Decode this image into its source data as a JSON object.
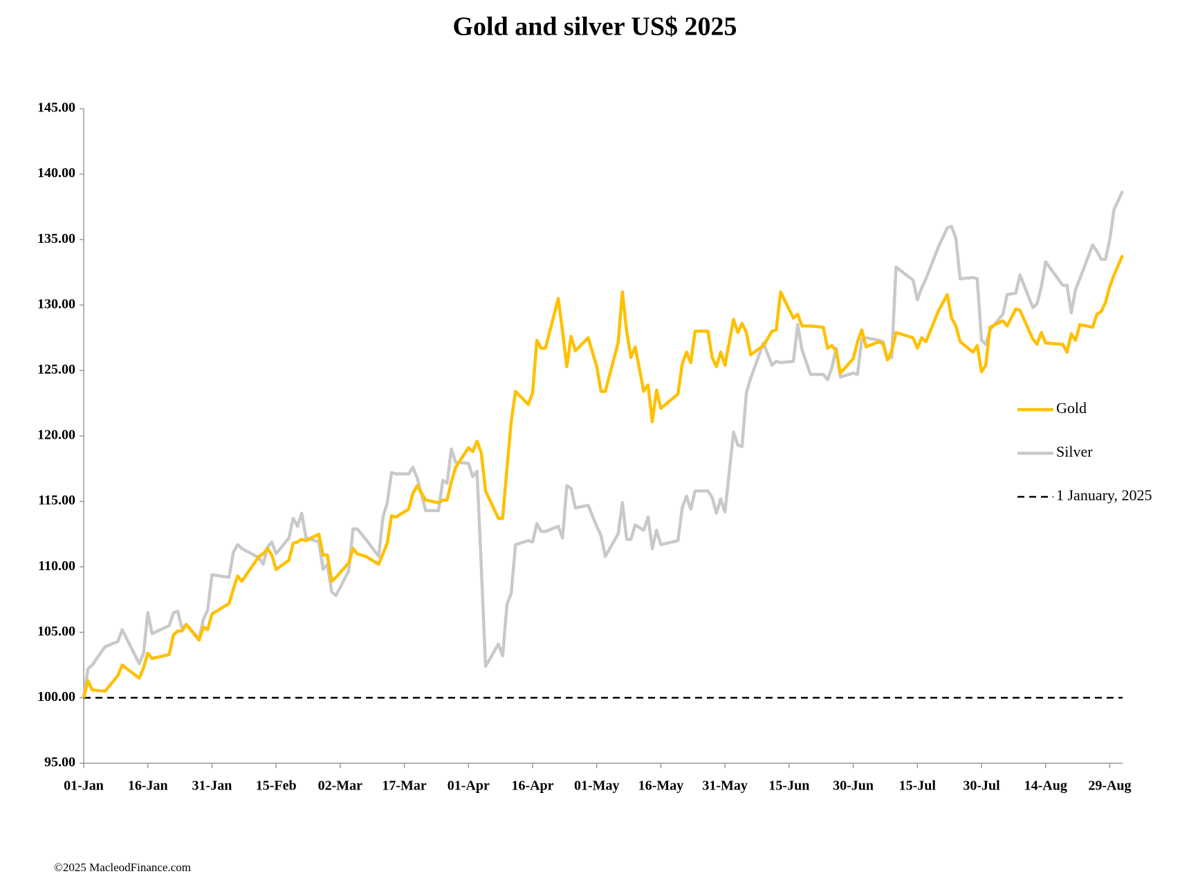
{
  "chart_data": {
    "type": "line",
    "title": "Gold and silver  US$ 2025",
    "source": "©2025 MacleodFinance.com",
    "x": [
      "01-Jan",
      "02-Jan",
      "03-Jan",
      "06-Jan",
      "09-Jan",
      "10-Jan",
      "14-Jan",
      "15-Jan",
      "16-Jan",
      "17-Jan",
      "21-Jan",
      "22-Jan",
      "23-Jan",
      "24-Jan",
      "25-Jan",
      "28-Jan",
      "29-Jan",
      "30-Jan",
      "31-Jan",
      "04-Feb",
      "05-Feb",
      "06-Feb",
      "07-Feb",
      "11-Feb",
      "12-Feb",
      "13-Feb",
      "14-Feb",
      "15-Feb",
      "18-Feb",
      "19-Feb",
      "20-Feb",
      "21-Feb",
      "22-Feb",
      "25-Feb",
      "26-Feb",
      "27-Feb",
      "28-Feb",
      "01-Mar",
      "04-Mar",
      "05-Mar",
      "06-Mar",
      "08-Mar",
      "11-Mar",
      "12-Mar",
      "13-Mar",
      "14-Mar",
      "15-Mar",
      "18-Mar",
      "19-Mar",
      "20-Mar",
      "22-Mar",
      "25-Mar",
      "26-Mar",
      "27-Mar",
      "28-Mar",
      "29-Mar",
      "01-Apr",
      "02-Apr",
      "03-Apr",
      "04-Apr",
      "05-Apr",
      "08-Apr",
      "09-Apr",
      "10-Apr",
      "11-Apr",
      "12-Apr",
      "15-Apr",
      "16-Apr",
      "17-Apr",
      "18-Apr",
      "19-Apr",
      "22-Apr",
      "23-Apr",
      "24-Apr",
      "25-Apr",
      "26-Apr",
      "29-Apr",
      "01-May",
      "02-May",
      "03-May",
      "06-May",
      "07-May",
      "08-May",
      "09-May",
      "10-May",
      "12-May",
      "13-May",
      "14-May",
      "15-May",
      "16-May",
      "20-May",
      "21-May",
      "22-May",
      "23-May",
      "24-May",
      "27-May",
      "28-May",
      "29-May",
      "30-May",
      "31-May",
      "02-Jun",
      "03-Jun",
      "04-Jun",
      "05-Jun",
      "06-Jun",
      "09-Jun",
      "11-Jun",
      "12-Jun",
      "13-Jun",
      "16-Jun",
      "17-Jun",
      "18-Jun",
      "20-Jun",
      "23-Jun",
      "24-Jun",
      "25-Jun",
      "26-Jun",
      "27-Jun",
      "30-Jun",
      "01-Jul",
      "02-Jul",
      "03-Jul",
      "06-Jul",
      "07-Jul",
      "08-Jul",
      "09-Jul",
      "10-Jul",
      "14-Jul",
      "15-Jul",
      "16-Jul",
      "17-Jul",
      "20-Jul",
      "22-Jul",
      "23-Jul",
      "24-Jul",
      "25-Jul",
      "28-Jul",
      "29-Jul",
      "30-Jul",
      "31-Jul",
      "01-Aug",
      "04-Aug",
      "05-Aug",
      "07-Aug",
      "08-Aug",
      "11-Aug",
      "12-Aug",
      "13-Aug",
      "14-Aug",
      "18-Aug",
      "19-Aug",
      "20-Aug",
      "21-Aug",
      "22-Aug",
      "25-Aug",
      "26-Aug",
      "27-Aug",
      "28-Aug",
      "29-Aug",
      "30-Aug",
      "01-Sep"
    ],
    "series": [
      {
        "name": "Gold",
        "color": "#ffc000",
        "values": [
          100,
          101.3,
          100.6,
          100.5,
          101.7,
          102.5,
          101.5,
          102.3,
          103.4,
          103,
          103.3,
          104.8,
          105.1,
          105.1,
          105.6,
          104.4,
          105.4,
          105.2,
          106.4,
          107.2,
          108.3,
          109.3,
          108.9,
          110.8,
          111,
          111.4,
          110.9,
          109.8,
          110.5,
          111.8,
          111.9,
          112.1,
          112,
          112.5,
          110.9,
          110.9,
          108.9,
          109.2,
          110.3,
          111.4,
          111,
          110.8,
          110.2,
          111,
          111.8,
          113.9,
          113.8,
          114.4,
          115.6,
          116.2,
          115.1,
          114.9,
          115.1,
          115.1,
          116.5,
          117.6,
          119.1,
          118.8,
          119.6,
          118.7,
          115.8,
          113.7,
          113.7,
          117.5,
          121.1,
          123.4,
          122.4,
          123.3,
          127.3,
          126.7,
          126.7,
          130.5,
          128,
          125.3,
          127.6,
          126.5,
          127.5,
          125.3,
          123.4,
          123.4,
          127.1,
          131,
          128,
          126,
          126.8,
          123.4,
          123.9,
          121.1,
          123.5,
          122.1,
          123.2,
          125.5,
          126.4,
          125.6,
          128,
          128,
          126,
          125.3,
          126.4,
          125.4,
          128.9,
          127.9,
          128.6,
          127.9,
          126.2,
          126.9,
          128,
          128.1,
          131,
          129,
          129.3,
          128.4,
          128.4,
          128.3,
          126.7,
          126.9,
          126.5,
          124.8,
          125.9,
          127.2,
          128.1,
          126.8,
          127.2,
          127,
          125.8,
          126.5,
          127.9,
          127.5,
          126.7,
          127.5,
          127.2,
          129.6,
          130.8,
          129,
          128.4,
          127.2,
          126.4,
          126.9,
          124.9,
          125.4,
          128.3,
          128.8,
          128.4,
          129.7,
          129.6,
          127.4,
          127,
          127.9,
          127.1,
          127,
          126.4,
          127.8,
          127.3,
          128.5,
          128.3,
          129.3,
          129.5,
          130.2,
          131.4,
          132.3,
          133.8
        ]
      },
      {
        "name": "Silver",
        "color": "#c9c9c9",
        "values": [
          100,
          102.2,
          102.5,
          103.9,
          104.3,
          105.2,
          102.6,
          103.4,
          106.5,
          104.9,
          105.5,
          106.5,
          106.6,
          105.3,
          105.6,
          104.5,
          106,
          106.7,
          109.4,
          109.2,
          111.1,
          111.7,
          111.4,
          110.7,
          110.2,
          111.5,
          111.9,
          111,
          112.2,
          113.7,
          113.1,
          114.1,
          112.2,
          111.9,
          109.8,
          110.2,
          108.1,
          107.8,
          109.7,
          112.9,
          112.9,
          112.1,
          110.8,
          113.8,
          114.9,
          117.2,
          117.1,
          117.1,
          117.6,
          116.8,
          114.3,
          114.3,
          116.6,
          116.4,
          119,
          118,
          117.9,
          116.9,
          117.3,
          110,
          102.4,
          104.1,
          103.2,
          107.1,
          108,
          111.7,
          112,
          111.9,
          113.3,
          112.7,
          112.7,
          113.1,
          112.2,
          116.2,
          116,
          114.5,
          114.7,
          113.1,
          112.4,
          110.8,
          112.5,
          114.9,
          112.1,
          112.1,
          113.2,
          112.8,
          113.8,
          111.4,
          112.8,
          111.7,
          112,
          114.5,
          115.4,
          114.4,
          115.8,
          115.8,
          115.3,
          114.1,
          115.2,
          114.2,
          120.3,
          119.3,
          119.2,
          123.3,
          124.4,
          127.1,
          125.4,
          125.7,
          125.6,
          125.7,
          128.5,
          126.6,
          124.7,
          124.7,
          124.3,
          125.2,
          126.7,
          124.5,
          124.8,
          124.7,
          127.4,
          127.5,
          127.3,
          127.2,
          125.9,
          126,
          132.9,
          131.9,
          130.4,
          131.3,
          132,
          134.5,
          135.9,
          136,
          135.1,
          132,
          132.1,
          132,
          127.3,
          127,
          128.1,
          129.3,
          130.8,
          130.9,
          132.3,
          129.8,
          130.1,
          131.4,
          133.3,
          131.5,
          131.5,
          129.4,
          131.2,
          132,
          134.6,
          134.1,
          133.5,
          133.5,
          135,
          137.3,
          138.7
        ]
      }
    ],
    "reference": {
      "name": "1 January, 2025",
      "value": 100,
      "color": "#000000"
    },
    "xlim": [
      "01-Jan",
      "01-Sep"
    ],
    "xticks": [
      "01-Jan",
      "16-Jan",
      "31-Jan",
      "15-Feb",
      "02-Mar",
      "17-Mar",
      "01-Apr",
      "16-Apr",
      "01-May",
      "16-May",
      "31-May",
      "15-Jun",
      "30-Jun",
      "15-Jul",
      "30-Jul",
      "14-Aug",
      "29-Aug"
    ],
    "ylim": [
      95,
      145
    ],
    "yticks": [
      {
        "value": 95,
        "label": "95.00"
      },
      {
        "value": 100,
        "label": "100.00"
      },
      {
        "value": 105,
        "label": "105.00"
      },
      {
        "value": 110,
        "label": "110.00"
      },
      {
        "value": 115,
        "label": "115.00"
      },
      {
        "value": 120,
        "label": "120.00"
      },
      {
        "value": 125,
        "label": "125.00"
      },
      {
        "value": 130,
        "label": "130.00"
      },
      {
        "value": 135,
        "label": "135.00"
      },
      {
        "value": 140,
        "label": "140.00"
      },
      {
        "value": 145,
        "label": "145.00"
      }
    ],
    "grid": false,
    "legend": "right"
  }
}
